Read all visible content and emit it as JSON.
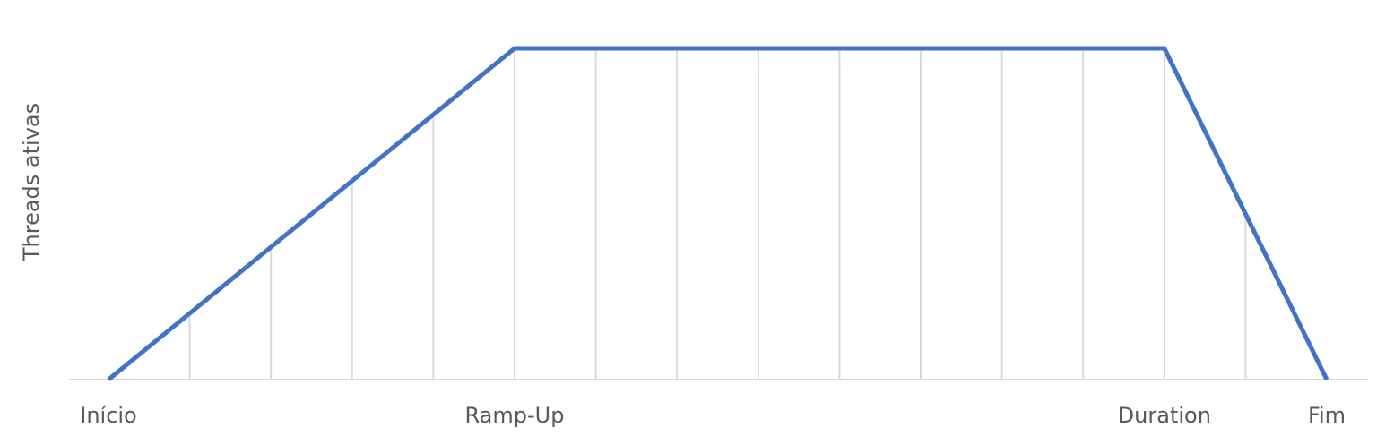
{
  "chart_data": {
    "type": "line",
    "title": "",
    "xlabel": "",
    "ylabel": "Threads ativas",
    "x": [
      0,
      1,
      2,
      3,
      4,
      5,
      6,
      7,
      8,
      9,
      10,
      11,
      12,
      13,
      14,
      15
    ],
    "x_tick_labels": [
      {
        "x": 0,
        "label": "Início"
      },
      {
        "x": 5,
        "label": "Ramp-Up"
      },
      {
        "x": 13,
        "label": "Duration"
      },
      {
        "x": 15,
        "label": "Fim"
      }
    ],
    "series": [
      {
        "values": [
          0,
          1,
          2,
          3,
          4,
          5,
          5,
          5,
          5,
          5,
          5,
          5,
          5,
          5,
          2.5,
          0
        ]
      }
    ],
    "ylim": [
      0,
      5
    ],
    "vertical_gridlines": true,
    "horizontal_gridlines": false,
    "legend": "none",
    "colors": {
      "line": "#4472C4",
      "grid": "#D9D9D9",
      "axis": "#D9D9D9",
      "text": "#595959"
    }
  }
}
